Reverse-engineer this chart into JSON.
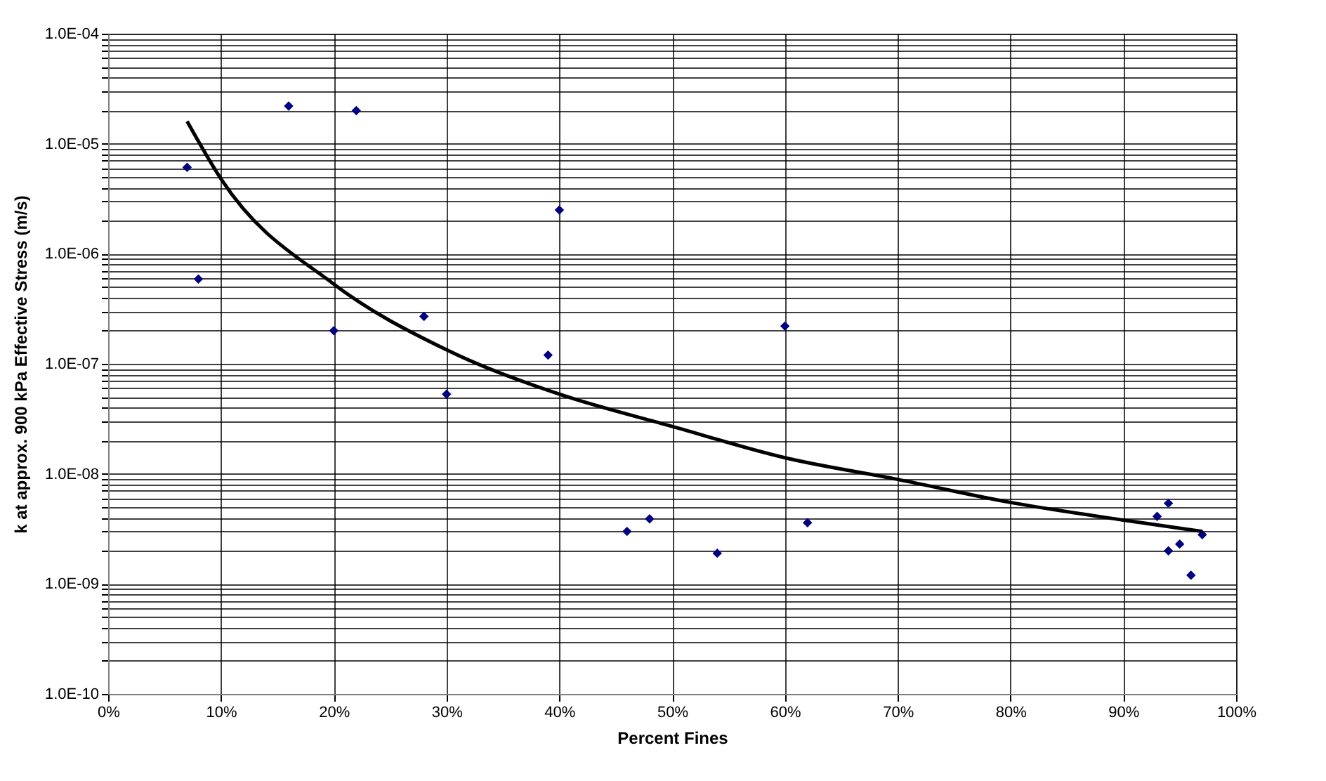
{
  "chart_data": {
    "type": "scatter",
    "xlabel": "Percent Fines",
    "ylabel": "k at approx. 900 kPa Effective Stress (m/s)",
    "log": "y",
    "grid": true,
    "legend": false,
    "xlim": [
      0,
      100
    ],
    "xticks": [
      {
        "value": 0,
        "label": "0%"
      },
      {
        "value": 10,
        "label": "10%"
      },
      {
        "value": 20,
        "label": "20%"
      },
      {
        "value": 30,
        "label": "30%"
      },
      {
        "value": 40,
        "label": "40%"
      },
      {
        "value": 50,
        "label": "50%"
      },
      {
        "value": 60,
        "label": "60%"
      },
      {
        "value": 70,
        "label": "70%"
      },
      {
        "value": 80,
        "label": "80%"
      },
      {
        "value": 90,
        "label": "90%"
      },
      {
        "value": 100,
        "label": "100%"
      }
    ],
    "ylim": [
      1e-10,
      0.0001
    ],
    "yticks": [
      {
        "value": 1e-10,
        "label": "1.0E-10"
      },
      {
        "value": 2e-10,
        "label": null
      },
      {
        "value": 3e-10,
        "label": null
      },
      {
        "value": 4e-10,
        "label": null
      },
      {
        "value": 5e-10,
        "label": null
      },
      {
        "value": 6e-10,
        "label": null
      },
      {
        "value": 7e-10,
        "label": null
      },
      {
        "value": 8e-10,
        "label": null
      },
      {
        "value": 9e-10,
        "label": null
      },
      {
        "value": 1e-09,
        "label": "1.0E-09"
      },
      {
        "value": 2e-09,
        "label": null
      },
      {
        "value": 3e-09,
        "label": null
      },
      {
        "value": 4e-09,
        "label": null
      },
      {
        "value": 5e-09,
        "label": null
      },
      {
        "value": 6e-09,
        "label": null
      },
      {
        "value": 7e-09,
        "label": null
      },
      {
        "value": 8e-09,
        "label": null
      },
      {
        "value": 9e-09,
        "label": null
      },
      {
        "value": 1e-08,
        "label": "1.0E-08"
      },
      {
        "value": 2e-08,
        "label": null
      },
      {
        "value": 3e-08,
        "label": null
      },
      {
        "value": 4e-08,
        "label": null
      },
      {
        "value": 5e-08,
        "label": null
      },
      {
        "value": 6e-08,
        "label": null
      },
      {
        "value": 7e-08,
        "label": null
      },
      {
        "value": 8e-08,
        "label": null
      },
      {
        "value": 9e-08,
        "label": null
      },
      {
        "value": 1e-07,
        "label": "1.0E-07"
      },
      {
        "value": 2e-07,
        "label": null
      },
      {
        "value": 3e-07,
        "label": null
      },
      {
        "value": 4e-07,
        "label": null
      },
      {
        "value": 5e-07,
        "label": null
      },
      {
        "value": 6e-07,
        "label": null
      },
      {
        "value": 7e-07,
        "label": null
      },
      {
        "value": 8e-07,
        "label": null
      },
      {
        "value": 9e-07,
        "label": null
      },
      {
        "value": 1e-06,
        "label": "1.0E-06"
      },
      {
        "value": 2e-06,
        "label": null
      },
      {
        "value": 3e-06,
        "label": null
      },
      {
        "value": 4e-06,
        "label": null
      },
      {
        "value": 5e-06,
        "label": null
      },
      {
        "value": 6e-06,
        "label": null
      },
      {
        "value": 7e-06,
        "label": null
      },
      {
        "value": 8e-06,
        "label": null
      },
      {
        "value": 9e-06,
        "label": null
      },
      {
        "value": 1e-05,
        "label": "1.0E-05"
      },
      {
        "value": 2e-05,
        "label": null
      },
      {
        "value": 3e-05,
        "label": null
      },
      {
        "value": 4e-05,
        "label": null
      },
      {
        "value": 5e-05,
        "label": null
      },
      {
        "value": 6e-05,
        "label": null
      },
      {
        "value": 7e-05,
        "label": null
      },
      {
        "value": 8e-05,
        "label": null
      },
      {
        "value": 9e-05,
        "label": null
      },
      {
        "value": 0.0001,
        "label": "1.0E-04"
      }
    ],
    "series": [
      {
        "type": "scatter",
        "marker": "diamond",
        "color": "#000080",
        "x": [
          7,
          8,
          16,
          22,
          20,
          28,
          30,
          39,
          40,
          46,
          48,
          54,
          60,
          62,
          93,
          94,
          94,
          95,
          96,
          97
        ],
        "values": [
          6.1e-06,
          5.9e-07,
          2.2e-05,
          2e-05,
          2e-07,
          2.7e-07,
          5.3e-08,
          1.2e-07,
          2.5e-06,
          3e-09,
          3.9e-09,
          1.9e-09,
          2.2e-07,
          3.6e-09,
          4.1e-09,
          5.4e-09,
          2e-09,
          2.3e-09,
          1.2e-09,
          2.8e-09
        ]
      },
      {
        "type": "line",
        "color": "#000000",
        "x": [
          7,
          10,
          20,
          30,
          40,
          50,
          60,
          70,
          80,
          90,
          97
        ],
        "values": [
          1.6e-05,
          4.8e-06,
          5.3e-07,
          1.34e-07,
          5.3e-08,
          2.7e-08,
          1.4e-08,
          8.9e-09,
          5.5e-09,
          3.8e-09,
          3e-09
        ]
      }
    ]
  }
}
